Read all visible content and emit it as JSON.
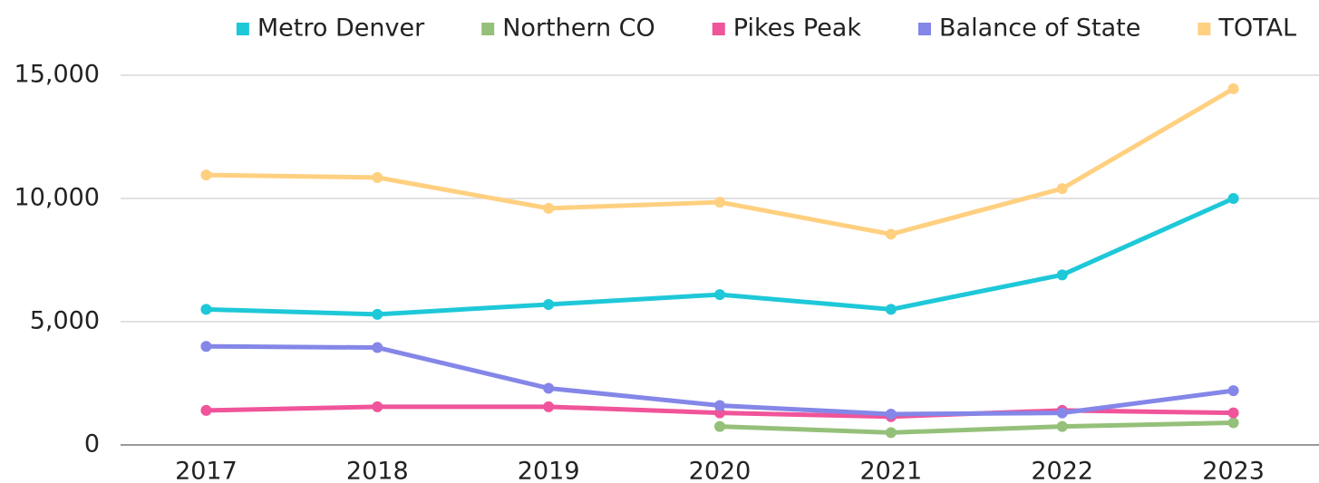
{
  "chart_data": {
    "type": "line",
    "categories": [
      "2017",
      "2018",
      "2019",
      "2020",
      "2021",
      "2022",
      "2023"
    ],
    "series": [
      {
        "name": "Metro Denver",
        "color": "#1ec8d8",
        "values": [
          5500,
          5300,
          5700,
          6100,
          5500,
          6900,
          10000
        ]
      },
      {
        "name": "Northern CO",
        "color": "#95c07a",
        "values": [
          null,
          null,
          null,
          750,
          500,
          750,
          900
        ]
      },
      {
        "name": "Pikes Peak",
        "color": "#f0549a",
        "values": [
          1400,
          1550,
          1550,
          1300,
          1150,
          1400,
          1300
        ]
      },
      {
        "name": "Balance of State",
        "color": "#8486e8",
        "values": [
          4000,
          3950,
          2300,
          1600,
          1250,
          1300,
          2200
        ]
      },
      {
        "name": "TOTAL",
        "color": "#ffd080",
        "values": [
          10950,
          10850,
          9600,
          9850,
          8550,
          10400,
          14450
        ]
      }
    ],
    "ylim": [
      0,
      15000
    ],
    "yticks": [
      0,
      {
        "value": 5000,
        "label": "5,000"
      },
      {
        "value": 10000,
        "label": "10,000"
      },
      {
        "value": 15000,
        "label": "15,000"
      }
    ],
    "grid": true,
    "legend": "top"
  }
}
